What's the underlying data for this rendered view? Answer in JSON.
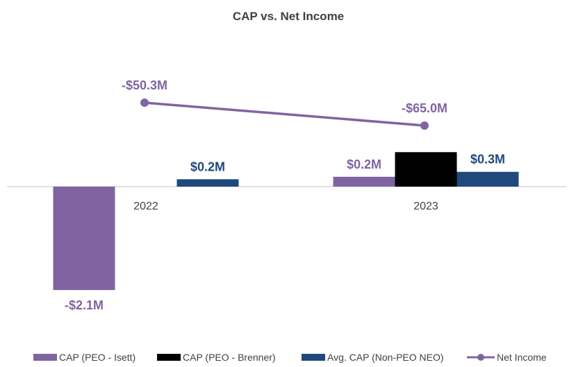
{
  "chart_data": {
    "type": "bar",
    "title": "CAP vs. Net Income",
    "categories": [
      "2022",
      "2023"
    ],
    "series": [
      {
        "name": "CAP (PEO - Isett)",
        "type": "bar",
        "color": "#8064a2",
        "values": [
          -2.1,
          0.2
        ],
        "labels": [
          "-$2.1M",
          "$0.2M"
        ]
      },
      {
        "name": "CAP (PEO - Brenner)",
        "type": "bar",
        "color": "#000000",
        "values": [
          null,
          0.7
        ],
        "labels": [
          "",
          ""
        ]
      },
      {
        "name": "Avg. CAP (Non-PEO NEO)",
        "type": "bar",
        "color": "#1f497d",
        "values": [
          0.15,
          0.3
        ],
        "labels": [
          "$0.2M",
          "$0.3M"
        ]
      },
      {
        "name": "Net Income",
        "type": "line",
        "color": "#8064a2",
        "axis": "secondary",
        "values": [
          -50.3,
          -65.0
        ],
        "labels": [
          "-$50.3M",
          "-$65.0M"
        ]
      }
    ],
    "legend_position": "bottom",
    "grid": false
  }
}
